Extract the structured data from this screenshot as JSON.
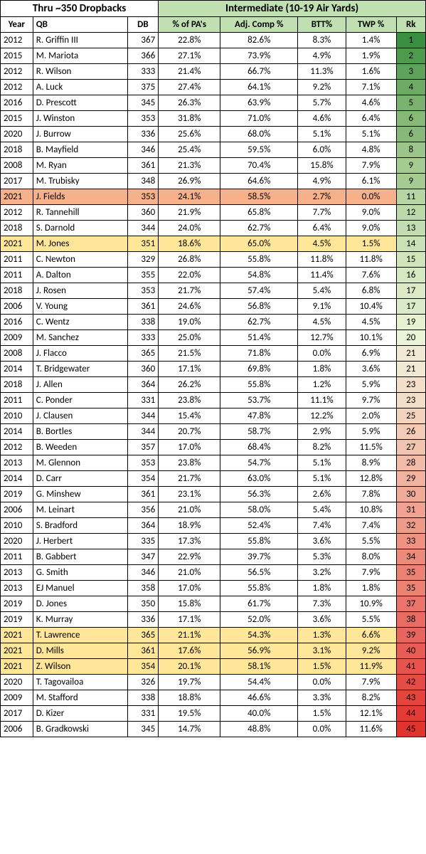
{
  "header": {
    "left_title": "Thru ~350 Dropbacks",
    "right_title": "Intermediate (10-19 Air Yards)",
    "right_bg": "#c1e0b2"
  },
  "columns": {
    "year": "Year",
    "qb": "QB",
    "db": "DB",
    "pa": "% of PA's",
    "adj": "Adj. Comp %",
    "btt": "BTT%",
    "twp": "TWP %",
    "rk": "Rk",
    "right_bg": "#c1e0b2"
  },
  "highlight_colors": {
    "orange": "#f6b18b",
    "yellow": "#ffe698"
  },
  "rank_gradient": [
    "#3a8e3f",
    "#4f9a4d",
    "#5fa259",
    "#6daa64",
    "#7ab16e",
    "#86b878",
    "#86b878",
    "#9cc58b",
    "#a5cb93",
    "#a5cb93",
    "#b5d5a2",
    "#bcd9a9",
    "#c2ddaf",
    "#c9e1b6",
    "#cfe5bc",
    "#d4e8c1",
    "#dbebc7",
    "#dbebc7",
    "#e5f1d1",
    "#eaf4d6",
    "#f2e9d2",
    "#f2e9d2",
    "#f3dfc9",
    "#f3dfc9",
    "#f3d3bd",
    "#f3cbb6",
    "#f2c3ae",
    "#f2bba7",
    "#f1b39f",
    "#f0ab98",
    "#efa390",
    "#ee9b89",
    "#ee9381",
    "#ed8b7a",
    "#ec8372",
    "#ec8372",
    "#ea746b",
    "#e96c64",
    "#e8645c",
    "#e75c55",
    "#e6544d",
    "#e54c46",
    "#e4443e",
    "#e33c37",
    "#e2342f"
  ],
  "rows": [
    {
      "year": "2012",
      "qb": "R. Griffin III",
      "db": "367",
      "pa": "22.8%",
      "adj": "82.6%",
      "btt": "8.3%",
      "twp": "1.4%",
      "rk": "1",
      "hl": null
    },
    {
      "year": "2015",
      "qb": "M. Mariota",
      "db": "366",
      "pa": "27.1%",
      "adj": "73.9%",
      "btt": "4.9%",
      "twp": "1.9%",
      "rk": "2",
      "hl": null
    },
    {
      "year": "2012",
      "qb": "R. Wilson",
      "db": "333",
      "pa": "21.4%",
      "adj": "66.7%",
      "btt": "11.3%",
      "twp": "1.6%",
      "rk": "3",
      "hl": null
    },
    {
      "year": "2012",
      "qb": "A. Luck",
      "db": "375",
      "pa": "27.4%",
      "adj": "64.1%",
      "btt": "9.2%",
      "twp": "7.1%",
      "rk": "4",
      "hl": null
    },
    {
      "year": "2016",
      "qb": "D. Prescott",
      "db": "345",
      "pa": "26.3%",
      "adj": "63.9%",
      "btt": "5.7%",
      "twp": "4.6%",
      "rk": "5",
      "hl": null
    },
    {
      "year": "2015",
      "qb": "J. Winston",
      "db": "353",
      "pa": "31.8%",
      "adj": "71.0%",
      "btt": "4.6%",
      "twp": "6.4%",
      "rk": "6",
      "hl": null
    },
    {
      "year": "2020",
      "qb": "J. Burrow",
      "db": "336",
      "pa": "25.6%",
      "adj": "68.0%",
      "btt": "5.1%",
      "twp": "5.1%",
      "rk": "6",
      "hl": null
    },
    {
      "year": "2018",
      "qb": "B. Mayfield",
      "db": "346",
      "pa": "25.4%",
      "adj": "59.5%",
      "btt": "6.0%",
      "twp": "4.8%",
      "rk": "8",
      "hl": null
    },
    {
      "year": "2008",
      "qb": "M. Ryan",
      "db": "361",
      "pa": "21.3%",
      "adj": "70.4%",
      "btt": "15.8%",
      "twp": "7.9%",
      "rk": "9",
      "hl": null
    },
    {
      "year": "2017",
      "qb": "M. Trubisky",
      "db": "348",
      "pa": "26.9%",
      "adj": "64.6%",
      "btt": "4.9%",
      "twp": "6.1%",
      "rk": "9",
      "hl": null
    },
    {
      "year": "2021",
      "qb": "J. Fields",
      "db": "353",
      "pa": "24.1%",
      "adj": "58.5%",
      "btt": "2.7%",
      "twp": "0.0%",
      "rk": "11",
      "hl": "orange"
    },
    {
      "year": "2012",
      "qb": "R. Tannehill",
      "db": "360",
      "pa": "21.9%",
      "adj": "65.8%",
      "btt": "7.7%",
      "twp": "9.0%",
      "rk": "12",
      "hl": null
    },
    {
      "year": "2018",
      "qb": "S. Darnold",
      "db": "344",
      "pa": "24.0%",
      "adj": "62.7%",
      "btt": "6.4%",
      "twp": "9.0%",
      "rk": "13",
      "hl": null
    },
    {
      "year": "2021",
      "qb": "M. Jones",
      "db": "351",
      "pa": "18.6%",
      "adj": "65.0%",
      "btt": "4.5%",
      "twp": "1.5%",
      "rk": "14",
      "hl": "yellow"
    },
    {
      "year": "2011",
      "qb": "C. Newton",
      "db": "329",
      "pa": "26.8%",
      "adj": "55.8%",
      "btt": "11.8%",
      "twp": "11.8%",
      "rk": "15",
      "hl": null
    },
    {
      "year": "2011",
      "qb": "A. Dalton",
      "db": "355",
      "pa": "22.0%",
      "adj": "54.8%",
      "btt": "11.4%",
      "twp": "7.6%",
      "rk": "16",
      "hl": null
    },
    {
      "year": "2018",
      "qb": "J. Rosen",
      "db": "353",
      "pa": "21.7%",
      "adj": "57.4%",
      "btt": "5.4%",
      "twp": "6.8%",
      "rk": "17",
      "hl": null
    },
    {
      "year": "2006",
      "qb": "V. Young",
      "db": "361",
      "pa": "24.6%",
      "adj": "56.8%",
      "btt": "9.1%",
      "twp": "10.4%",
      "rk": "17",
      "hl": null
    },
    {
      "year": "2016",
      "qb": "C. Wentz",
      "db": "338",
      "pa": "19.0%",
      "adj": "62.7%",
      "btt": "4.5%",
      "twp": "4.5%",
      "rk": "19",
      "hl": null
    },
    {
      "year": "2009",
      "qb": "M. Sanchez",
      "db": "333",
      "pa": "25.0%",
      "adj": "51.4%",
      "btt": "12.7%",
      "twp": "10.1%",
      "rk": "20",
      "hl": null
    },
    {
      "year": "2008",
      "qb": "J. Flacco",
      "db": "365",
      "pa": "21.5%",
      "adj": "71.8%",
      "btt": "0.0%",
      "twp": "6.9%",
      "rk": "21",
      "hl": null
    },
    {
      "year": "2014",
      "qb": "T. Bridgewater",
      "db": "360",
      "pa": "17.1%",
      "adj": "69.8%",
      "btt": "1.8%",
      "twp": "3.6%",
      "rk": "21",
      "hl": null
    },
    {
      "year": "2018",
      "qb": "J. Allen",
      "db": "364",
      "pa": "26.2%",
      "adj": "55.8%",
      "btt": "1.2%",
      "twp": "5.9%",
      "rk": "23",
      "hl": null
    },
    {
      "year": "2011",
      "qb": "C. Ponder",
      "db": "331",
      "pa": "23.8%",
      "adj": "53.7%",
      "btt": "11.1%",
      "twp": "9.7%",
      "rk": "23",
      "hl": null
    },
    {
      "year": "2010",
      "qb": "J. Clausen",
      "db": "344",
      "pa": "15.4%",
      "adj": "47.8%",
      "btt": "12.2%",
      "twp": "2.0%",
      "rk": "25",
      "hl": null
    },
    {
      "year": "2014",
      "qb": "B. Bortles",
      "db": "344",
      "pa": "20.7%",
      "adj": "58.7%",
      "btt": "2.9%",
      "twp": "5.9%",
      "rk": "26",
      "hl": null
    },
    {
      "year": "2012",
      "qb": "B. Weeden",
      "db": "357",
      "pa": "17.0%",
      "adj": "68.4%",
      "btt": "8.2%",
      "twp": "11.5%",
      "rk": "27",
      "hl": null
    },
    {
      "year": "2013",
      "qb": "M. Glennon",
      "db": "353",
      "pa": "23.8%",
      "adj": "54.7%",
      "btt": "5.1%",
      "twp": "8.9%",
      "rk": "28",
      "hl": null
    },
    {
      "year": "2014",
      "qb": "D. Carr",
      "db": "354",
      "pa": "21.7%",
      "adj": "63.0%",
      "btt": "5.1%",
      "twp": "12.8%",
      "rk": "29",
      "hl": null
    },
    {
      "year": "2019",
      "qb": "G. Minshew",
      "db": "361",
      "pa": "23.1%",
      "adj": "56.3%",
      "btt": "2.6%",
      "twp": "7.8%",
      "rk": "30",
      "hl": null
    },
    {
      "year": "2006",
      "qb": "M. Leinart",
      "db": "356",
      "pa": "21.0%",
      "adj": "58.0%",
      "btt": "5.4%",
      "twp": "10.8%",
      "rk": "31",
      "hl": null
    },
    {
      "year": "2010",
      "qb": "S. Bradford",
      "db": "364",
      "pa": "18.9%",
      "adj": "52.4%",
      "btt": "7.4%",
      "twp": "7.4%",
      "rk": "32",
      "hl": null
    },
    {
      "year": "2020",
      "qb": "J. Herbert",
      "db": "335",
      "pa": "17.3%",
      "adj": "55.8%",
      "btt": "3.6%",
      "twp": "5.5%",
      "rk": "33",
      "hl": null
    },
    {
      "year": "2011",
      "qb": "B. Gabbert",
      "db": "347",
      "pa": "22.9%",
      "adj": "39.7%",
      "btt": "5.3%",
      "twp": "8.0%",
      "rk": "34",
      "hl": null
    },
    {
      "year": "2013",
      "qb": "G. Smith",
      "db": "346",
      "pa": "21.0%",
      "adj": "56.5%",
      "btt": "3.2%",
      "twp": "7.9%",
      "rk": "35",
      "hl": null
    },
    {
      "year": "2013",
      "qb": "EJ Manuel",
      "db": "358",
      "pa": "17.0%",
      "adj": "55.8%",
      "btt": "1.8%",
      "twp": "1.8%",
      "rk": "35",
      "hl": null
    },
    {
      "year": "2019",
      "qb": "D. Jones",
      "db": "350",
      "pa": "15.8%",
      "adj": "61.7%",
      "btt": "7.3%",
      "twp": "10.9%",
      "rk": "37",
      "hl": null
    },
    {
      "year": "2019",
      "qb": "K. Murray",
      "db": "336",
      "pa": "17.1%",
      "adj": "52.0%",
      "btt": "3.6%",
      "twp": "5.5%",
      "rk": "38",
      "hl": null
    },
    {
      "year": "2021",
      "qb": "T. Lawrence",
      "db": "365",
      "pa": "21.1%",
      "adj": "54.3%",
      "btt": "1.3%",
      "twp": "6.6%",
      "rk": "39",
      "hl": "yellow"
    },
    {
      "year": "2021",
      "qb": "D. Mills",
      "db": "361",
      "pa": "17.6%",
      "adj": "56.9%",
      "btt": "3.1%",
      "twp": "9.2%",
      "rk": "40",
      "hl": "yellow"
    },
    {
      "year": "2021",
      "qb": "Z. Wilson",
      "db": "354",
      "pa": "20.1%",
      "adj": "58.1%",
      "btt": "1.5%",
      "twp": "11.9%",
      "rk": "41",
      "hl": "yellow"
    },
    {
      "year": "2020",
      "qb": "T. Tagovailoa",
      "db": "326",
      "pa": "19.7%",
      "adj": "54.4%",
      "btt": "0.0%",
      "twp": "7.9%",
      "rk": "42",
      "hl": null
    },
    {
      "year": "2009",
      "qb": "M. Stafford",
      "db": "338",
      "pa": "18.8%",
      "adj": "46.6%",
      "btt": "3.3%",
      "twp": "8.2%",
      "rk": "43",
      "hl": null
    },
    {
      "year": "2017",
      "qb": "D. Kizer",
      "db": "331",
      "pa": "19.5%",
      "adj": "40.0%",
      "btt": "1.5%",
      "twp": "12.1%",
      "rk": "44",
      "hl": null
    },
    {
      "year": "2006",
      "qb": "B. Gradkowski",
      "db": "345",
      "pa": "14.7%",
      "adj": "48.8%",
      "btt": "0.0%",
      "twp": "11.6%",
      "rk": "45",
      "hl": null
    }
  ]
}
